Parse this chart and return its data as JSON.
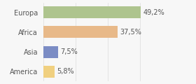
{
  "categories": [
    "Europa",
    "Africa",
    "Asia",
    "America"
  ],
  "values": [
    49.2,
    37.5,
    7.5,
    5.8
  ],
  "labels": [
    "49,2%",
    "37,5%",
    "7,5%",
    "5,8%"
  ],
  "bar_colors": [
    "#aec48e",
    "#e8b989",
    "#7b8cc4",
    "#f0d080"
  ],
  "xlim": [
    0,
    65
  ],
  "background_color": "#f7f7f7",
  "bar_height": 0.6,
  "label_fontsize": 7.0,
  "category_fontsize": 7.0,
  "text_color": "#555555",
  "grid_color": "#dddddd",
  "grid_ticks": [
    0,
    16.25,
    32.5,
    48.75,
    65
  ]
}
